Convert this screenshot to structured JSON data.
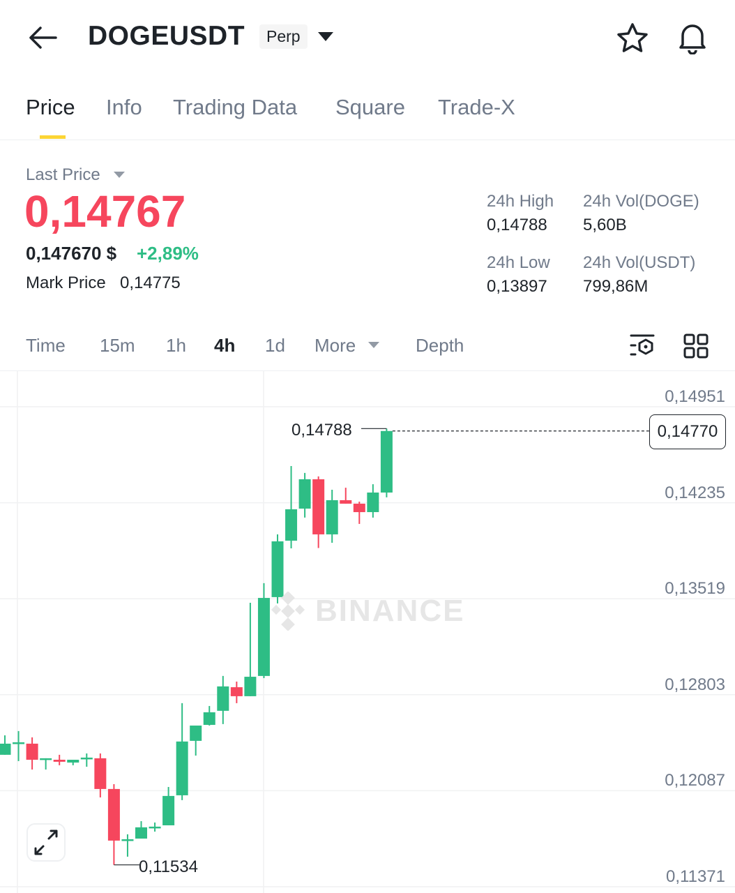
{
  "header": {
    "symbol": "DOGEUSDT",
    "badge": "Perp"
  },
  "tabs": [
    {
      "label": "Price",
      "active": true
    },
    {
      "label": "Info"
    },
    {
      "label": "Trading Data"
    },
    {
      "label": "Square"
    },
    {
      "label": "Trade-X"
    }
  ],
  "ticker": {
    "last_price_label": "Last Price",
    "last_price": "0,14767",
    "usd_price": "0,147670 $",
    "change": "+2,89%",
    "mark_price_label": "Mark Price",
    "mark_price": "0,14775",
    "stats": [
      {
        "label": "24h High",
        "value": "0,14788"
      },
      {
        "label": "24h Vol(DOGE)",
        "value": "5,60B"
      },
      {
        "label": "24h Low",
        "value": "0,13897"
      },
      {
        "label": "24h Vol(USDT)",
        "value": "799,86M"
      }
    ]
  },
  "intervals": [
    {
      "label": "Time"
    },
    {
      "label": "15m"
    },
    {
      "label": "1h"
    },
    {
      "label": "4h",
      "active": true
    },
    {
      "label": "1d"
    },
    {
      "label": "More"
    },
    {
      "label": "Depth"
    }
  ],
  "colors": {
    "up": "#2ebd85",
    "down": "#f6465d",
    "accent": "#fcd535",
    "muted": "#707a8a"
  },
  "chart_data": {
    "type": "candlestick",
    "interval": "4h",
    "watermark": "BINANCE",
    "y_ticks": [
      "0,14951",
      "0,14235",
      "0,13519",
      "0,12803",
      "0,12087",
      "0,11371"
    ],
    "y_tick_values": [
      0.14951,
      0.14235,
      0.13519,
      0.12803,
      0.12087,
      0.11371
    ],
    "ylim": [
      0.11371,
      0.14951
    ],
    "current_price_label": "0,14770",
    "max_label": "0,14788",
    "min_label": "0,11534",
    "candles": [
      [
        0.12355,
        0.125,
        0.12355,
        0.12438
      ],
      [
        0.12438,
        0.12532,
        0.12308,
        0.12448
      ],
      [
        0.12438,
        0.12485,
        0.12245,
        0.12318
      ],
      [
        0.12318,
        0.12329,
        0.12245,
        0.12329
      ],
      [
        0.12318,
        0.12355,
        0.12277,
        0.12303
      ],
      [
        0.12297,
        0.12318,
        0.12277,
        0.12318
      ],
      [
        0.12323,
        0.12365,
        0.12266,
        0.12334
      ],
      [
        0.12329,
        0.12365,
        0.12037,
        0.121
      ],
      [
        0.121,
        0.12136,
        0.11534,
        0.11715
      ],
      [
        0.11715,
        0.11762,
        0.11595,
        0.11725
      ],
      [
        0.1173,
        0.1186,
        0.1173,
        0.11814
      ],
      [
        0.11808,
        0.1185,
        0.11782,
        0.11819
      ],
      [
        0.11829,
        0.12115,
        0.11829,
        0.12048
      ],
      [
        0.12053,
        0.1274,
        0.12017,
        0.12454
      ],
      [
        0.12459,
        0.12573,
        0.12349,
        0.12573
      ],
      [
        0.12578,
        0.12719,
        0.12573,
        0.12672
      ],
      [
        0.12683,
        0.12943,
        0.12584,
        0.12865
      ],
      [
        0.12859,
        0.12901,
        0.1274,
        0.12792
      ],
      [
        0.12792,
        0.13489,
        0.12792,
        0.12937
      ],
      [
        0.12943,
        0.13635,
        0.12927,
        0.13525
      ],
      [
        0.13531,
        0.13999,
        0.13484,
        0.13947
      ],
      [
        0.13952,
        0.14509,
        0.13895,
        0.14186
      ],
      [
        0.14191,
        0.14457,
        0.14124,
        0.1441
      ],
      [
        0.1441,
        0.14431,
        0.13897,
        0.13999
      ],
      [
        0.13999,
        0.14332,
        0.13936,
        0.14254
      ],
      [
        0.14254,
        0.14347,
        0.14228,
        0.14228
      ],
      [
        0.14228,
        0.14243,
        0.14077,
        0.14165
      ],
      [
        0.14165,
        0.14373,
        0.14124,
        0.14311
      ],
      [
        0.14311,
        0.14788,
        0.14275,
        0.1477
      ]
    ]
  }
}
